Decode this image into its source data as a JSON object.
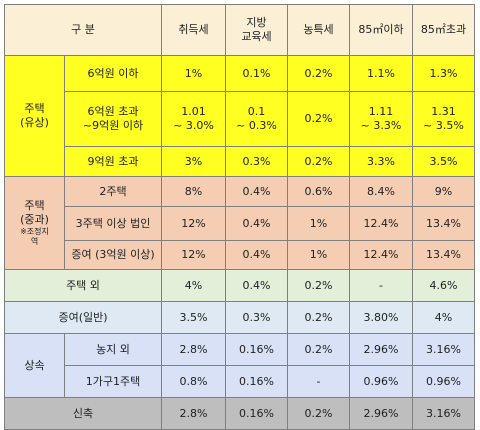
{
  "headers": {
    "category": "구 분",
    "acquisition": "취득세",
    "local_education": "지방\n교육세",
    "farm_special": "농특세",
    "under_85": "85㎡이하",
    "over_85": "85㎡초과"
  },
  "housing_paid": {
    "group_label": "주택\n(유상)",
    "rows": [
      {
        "label": "6억원 이하",
        "acquisition": "1%",
        "local_education": "0.1%",
        "farm_special": "0.2%",
        "under_85": "1.1%",
        "over_85": "1.3%"
      },
      {
        "label": "6억원 초과\n~9억원 이하",
        "acquisition": "1.01\n~ 3.0%",
        "local_education": "0.1\n~ 0.3%",
        "farm_special": "0.2%",
        "under_85": "1.11\n~ 3.3%",
        "over_85": "1.31\n~ 3.5%"
      },
      {
        "label": "9억원 초과",
        "acquisition": "3%",
        "local_education": "0.3%",
        "farm_special": "0.2%",
        "under_85": "3.3%",
        "over_85": "3.5%"
      }
    ]
  },
  "housing_heavy": {
    "group_label": "주택\n(중과)",
    "group_note": "※조정지\n역",
    "rows": [
      {
        "label": "2주택",
        "acquisition": "8%",
        "local_education": "0.4%",
        "farm_special": "0.6%",
        "under_85": "8.4%",
        "over_85": "9%"
      },
      {
        "label": "3주택 이상 법인",
        "acquisition": "12%",
        "local_education": "0.4%",
        "farm_special": "1%",
        "under_85": "12.4%",
        "over_85": "13.4%"
      },
      {
        "label": "증여 (3억원 이상)",
        "acquisition": "12%",
        "local_education": "0.4%",
        "farm_special": "1%",
        "under_85": "12.4%",
        "over_85": "13.4%"
      }
    ]
  },
  "non_housing": {
    "label": "주택 외",
    "acquisition": "4%",
    "local_education": "0.4%",
    "farm_special": "0.2%",
    "under_85": "-",
    "over_85": "4.6%"
  },
  "gift_general": {
    "label": "증여(일반)",
    "acquisition": "3.5%",
    "local_education": "0.3%",
    "farm_special": "0.2%",
    "under_85": "3.80%",
    "over_85": "4%"
  },
  "inheritance": {
    "group_label": "상속",
    "rows": [
      {
        "label": "농지 외",
        "acquisition": "2.8%",
        "local_education": "0.16%",
        "farm_special": "0.2%",
        "under_85": "2.96%",
        "over_85": "3.16%"
      },
      {
        "label": "1가구1주택",
        "acquisition": "0.8%",
        "local_education": "0.16%",
        "farm_special": "-",
        "under_85": "0.96%",
        "over_85": "0.96%"
      }
    ]
  },
  "new_build": {
    "label": "신축",
    "acquisition": "2.8%",
    "local_education": "0.16%",
    "farm_special": "0.2%",
    "under_85": "2.96%",
    "over_85": "3.16%"
  }
}
